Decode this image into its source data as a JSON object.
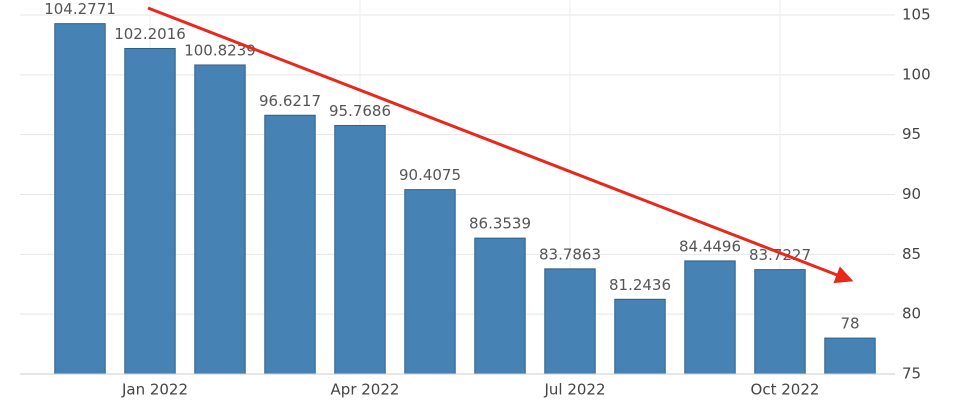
{
  "chart_data": {
    "type": "bar",
    "categories": [
      null,
      "Jan 2022",
      null,
      null,
      "Apr 2022",
      null,
      null,
      "Jul 2022",
      null,
      null,
      "Oct 2022",
      null
    ],
    "values": [
      104.2771,
      102.2016,
      100.8239,
      96.6217,
      95.7686,
      90.4075,
      86.3539,
      83.7863,
      81.2436,
      84.4496,
      83.7227,
      78
    ],
    "color": "#4682b4",
    "ylim": [
      75,
      105
    ],
    "yticks": [
      75,
      80,
      85,
      90,
      95,
      100,
      105
    ],
    "grid": true
  }
}
